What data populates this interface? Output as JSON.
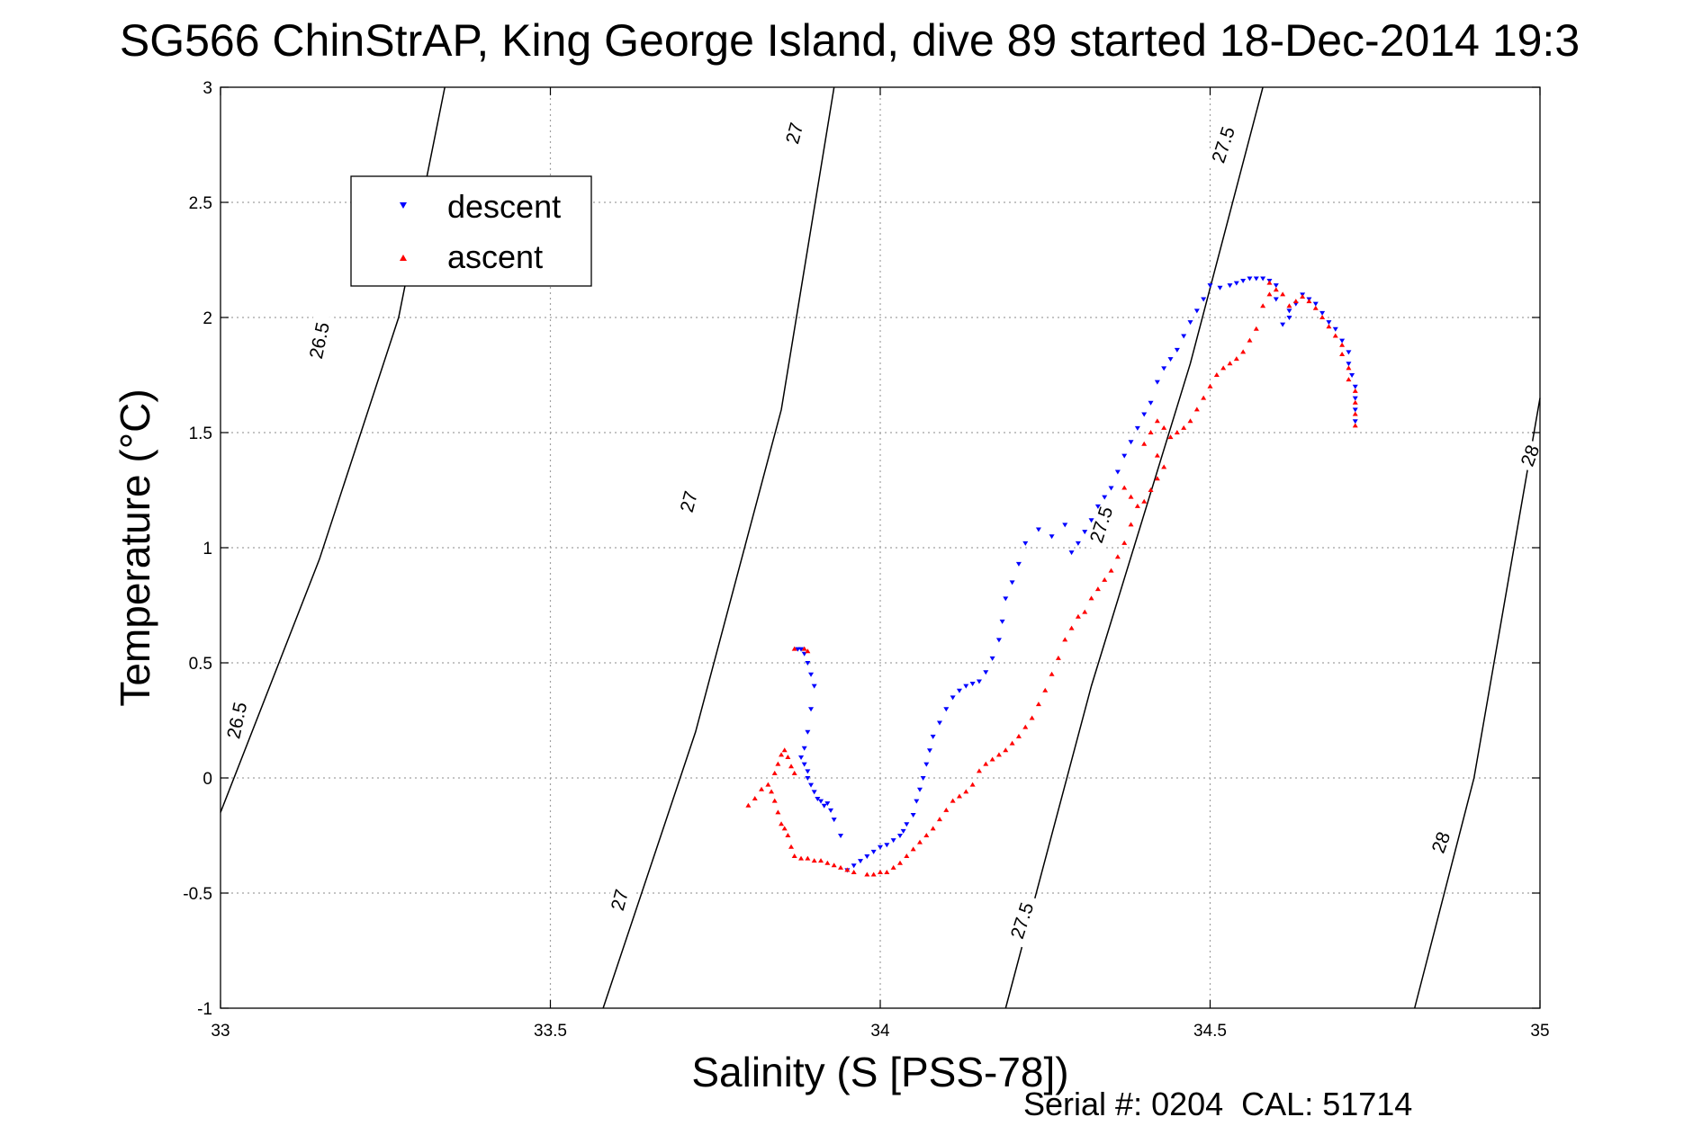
{
  "chart_data": {
    "type": "scatter",
    "title": "SG566 ChinStrAP, King George Island, dive 89 started 18-Dec-2014 19:3",
    "xlabel": "Salinity (S [PSS-78])",
    "ylabel": "Temperature (°C)",
    "xlim": [
      33,
      35
    ],
    "ylim": [
      -1,
      3
    ],
    "xticks": [
      "33",
      "33.5",
      "34",
      "34.5",
      "35"
    ],
    "yticks": [
      "-1",
      "-0.5",
      "0",
      "0.5",
      "1",
      "1.5",
      "2",
      "2.5",
      "3"
    ],
    "grid": true,
    "legend_position": "top-left",
    "footer": "Serial #: 0204  CAL: 51714",
    "series": [
      {
        "name": "descent",
        "color": "#0000ff",
        "marker": "triangle-down",
        "points": [
          [
            34.72,
            1.55
          ],
          [
            34.72,
            1.6
          ],
          [
            34.72,
            1.65
          ],
          [
            34.72,
            1.7
          ],
          [
            34.715,
            1.75
          ],
          [
            34.71,
            1.8
          ],
          [
            34.71,
            1.85
          ],
          [
            34.7,
            1.9
          ],
          [
            34.69,
            1.95
          ],
          [
            34.68,
            1.98
          ],
          [
            34.67,
            2.02
          ],
          [
            34.66,
            2.06
          ],
          [
            34.65,
            2.08
          ],
          [
            34.64,
            2.1
          ],
          [
            34.63,
            2.06
          ],
          [
            34.62,
            2.0
          ],
          [
            34.61,
            1.97
          ],
          [
            34.62,
            2.03
          ],
          [
            34.6,
            2.08
          ],
          [
            34.6,
            2.14
          ],
          [
            34.59,
            2.16
          ],
          [
            34.58,
            2.17
          ],
          [
            34.57,
            2.17
          ],
          [
            34.56,
            2.17
          ],
          [
            34.55,
            2.16
          ],
          [
            34.54,
            2.15
          ],
          [
            34.53,
            2.14
          ],
          [
            34.515,
            2.13
          ],
          [
            34.5,
            2.14
          ],
          [
            34.49,
            2.08
          ],
          [
            34.48,
            2.03
          ],
          [
            34.47,
            1.98
          ],
          [
            34.46,
            1.92
          ],
          [
            34.45,
            1.86
          ],
          [
            34.44,
            1.82
          ],
          [
            34.43,
            1.78
          ],
          [
            34.42,
            1.72
          ],
          [
            34.41,
            1.63
          ],
          [
            34.4,
            1.58
          ],
          [
            34.39,
            1.52
          ],
          [
            34.38,
            1.46
          ],
          [
            34.37,
            1.4
          ],
          [
            34.36,
            1.33
          ],
          [
            34.35,
            1.26
          ],
          [
            34.34,
            1.22
          ],
          [
            34.33,
            1.18
          ],
          [
            34.32,
            1.12
          ],
          [
            34.31,
            1.07
          ],
          [
            34.3,
            1.02
          ],
          [
            34.29,
            0.98
          ],
          [
            34.28,
            1.1
          ],
          [
            34.26,
            1.05
          ],
          [
            34.24,
            1.08
          ],
          [
            34.22,
            1.02
          ],
          [
            34.21,
            0.93
          ],
          [
            34.2,
            0.85
          ],
          [
            34.19,
            0.78
          ],
          [
            34.185,
            0.68
          ],
          [
            34.18,
            0.6
          ],
          [
            34.17,
            0.52
          ],
          [
            34.16,
            0.46
          ],
          [
            34.15,
            0.42
          ],
          [
            34.14,
            0.41
          ],
          [
            34.13,
            0.4
          ],
          [
            34.12,
            0.38
          ],
          [
            34.11,
            0.35
          ],
          [
            34.1,
            0.3
          ],
          [
            34.09,
            0.24
          ],
          [
            34.08,
            0.18
          ],
          [
            34.075,
            0.12
          ],
          [
            34.07,
            0.06
          ],
          [
            34.065,
            0.0
          ],
          [
            34.06,
            -0.05
          ],
          [
            34.055,
            -0.1
          ],
          [
            34.05,
            -0.16
          ],
          [
            34.04,
            -0.2
          ],
          [
            34.035,
            -0.23
          ],
          [
            34.03,
            -0.25
          ],
          [
            34.02,
            -0.27
          ],
          [
            34.01,
            -0.29
          ],
          [
            34.0,
            -0.3
          ],
          [
            33.99,
            -0.32
          ],
          [
            33.98,
            -0.34
          ],
          [
            33.97,
            -0.36
          ],
          [
            33.96,
            -0.38
          ],
          [
            33.95,
            -0.4
          ],
          [
            33.94,
            -0.25
          ],
          [
            33.93,
            -0.18
          ],
          [
            33.925,
            -0.14
          ],
          [
            33.92,
            -0.11
          ],
          [
            33.915,
            -0.12
          ],
          [
            33.91,
            -0.1
          ],
          [
            33.905,
            -0.09
          ],
          [
            33.9,
            -0.06
          ],
          [
            33.895,
            -0.03
          ],
          [
            33.89,
            0.0
          ],
          [
            33.89,
            0.03
          ],
          [
            33.885,
            0.06
          ],
          [
            33.88,
            0.09
          ],
          [
            33.885,
            0.13
          ],
          [
            33.89,
            0.2
          ],
          [
            33.895,
            0.3
          ],
          [
            33.9,
            0.4
          ],
          [
            33.895,
            0.45
          ],
          [
            33.89,
            0.5
          ],
          [
            33.885,
            0.54
          ],
          [
            33.88,
            0.56
          ],
          [
            33.875,
            0.56
          ]
        ]
      },
      {
        "name": "ascent",
        "color": "#ff0000",
        "marker": "triangle-up",
        "points": [
          [
            34.72,
            1.53
          ],
          [
            34.72,
            1.58
          ],
          [
            34.72,
            1.63
          ],
          [
            34.72,
            1.68
          ],
          [
            34.71,
            1.73
          ],
          [
            34.71,
            1.78
          ],
          [
            34.7,
            1.84
          ],
          [
            34.7,
            1.88
          ],
          [
            34.69,
            1.92
          ],
          [
            34.68,
            1.96
          ],
          [
            34.67,
            2.0
          ],
          [
            34.66,
            2.04
          ],
          [
            34.65,
            2.07
          ],
          [
            34.64,
            2.09
          ],
          [
            34.63,
            2.07
          ],
          [
            34.62,
            2.05
          ],
          [
            34.61,
            2.1
          ],
          [
            34.6,
            2.12
          ],
          [
            34.59,
            2.15
          ],
          [
            34.59,
            2.1
          ],
          [
            34.58,
            2.05
          ],
          [
            34.57,
            1.95
          ],
          [
            34.56,
            1.9
          ],
          [
            34.55,
            1.85
          ],
          [
            34.54,
            1.82
          ],
          [
            34.53,
            1.8
          ],
          [
            34.52,
            1.78
          ],
          [
            34.51,
            1.75
          ],
          [
            34.5,
            1.7
          ],
          [
            34.49,
            1.65
          ],
          [
            34.48,
            1.6
          ],
          [
            34.47,
            1.55
          ],
          [
            34.46,
            1.52
          ],
          [
            34.45,
            1.5
          ],
          [
            34.44,
            1.48
          ],
          [
            34.43,
            1.52
          ],
          [
            34.42,
            1.55
          ],
          [
            34.41,
            1.5
          ],
          [
            34.4,
            1.45
          ],
          [
            34.42,
            1.4
          ],
          [
            34.43,
            1.35
          ],
          [
            34.42,
            1.3
          ],
          [
            34.41,
            1.25
          ],
          [
            34.4,
            1.2
          ],
          [
            34.39,
            1.18
          ],
          [
            34.38,
            1.22
          ],
          [
            34.37,
            1.26
          ],
          [
            34.38,
            1.1
          ],
          [
            34.37,
            1.02
          ],
          [
            34.36,
            0.96
          ],
          [
            34.35,
            0.9
          ],
          [
            34.34,
            0.86
          ],
          [
            34.33,
            0.82
          ],
          [
            34.32,
            0.78
          ],
          [
            34.31,
            0.72
          ],
          [
            34.3,
            0.7
          ],
          [
            34.29,
            0.65
          ],
          [
            34.28,
            0.6
          ],
          [
            34.27,
            0.52
          ],
          [
            34.26,
            0.45
          ],
          [
            34.25,
            0.38
          ],
          [
            34.24,
            0.32
          ],
          [
            34.23,
            0.26
          ],
          [
            34.22,
            0.22
          ],
          [
            34.21,
            0.18
          ],
          [
            34.2,
            0.15
          ],
          [
            34.19,
            0.12
          ],
          [
            34.18,
            0.1
          ],
          [
            34.17,
            0.08
          ],
          [
            34.16,
            0.06
          ],
          [
            34.15,
            0.03
          ],
          [
            34.14,
            -0.03
          ],
          [
            34.13,
            -0.06
          ],
          [
            34.12,
            -0.08
          ],
          [
            34.11,
            -0.1
          ],
          [
            34.1,
            -0.14
          ],
          [
            34.09,
            -0.18
          ],
          [
            34.08,
            -0.22
          ],
          [
            34.07,
            -0.25
          ],
          [
            34.06,
            -0.28
          ],
          [
            34.05,
            -0.31
          ],
          [
            34.04,
            -0.34
          ],
          [
            34.03,
            -0.37
          ],
          [
            34.02,
            -0.39
          ],
          [
            34.01,
            -0.41
          ],
          [
            34.0,
            -0.41
          ],
          [
            33.99,
            -0.42
          ],
          [
            33.98,
            -0.42
          ],
          [
            33.96,
            -0.41
          ],
          [
            33.95,
            -0.4
          ],
          [
            33.94,
            -0.39
          ],
          [
            33.93,
            -0.38
          ],
          [
            33.92,
            -0.37
          ],
          [
            33.91,
            -0.36
          ],
          [
            33.9,
            -0.36
          ],
          [
            33.89,
            -0.35
          ],
          [
            33.88,
            -0.35
          ],
          [
            33.87,
            -0.34
          ],
          [
            33.865,
            -0.3
          ],
          [
            33.86,
            -0.25
          ],
          [
            33.855,
            -0.22
          ],
          [
            33.85,
            -0.2
          ],
          [
            33.845,
            -0.15
          ],
          [
            33.84,
            -0.1
          ],
          [
            33.835,
            -0.06
          ],
          [
            33.83,
            -0.03
          ],
          [
            33.84,
            0.02
          ],
          [
            33.845,
            0.06
          ],
          [
            33.85,
            0.1
          ],
          [
            33.855,
            0.12
          ],
          [
            33.86,
            0.09
          ],
          [
            33.865,
            0.05
          ],
          [
            33.87,
            0.02
          ],
          [
            33.82,
            -0.05
          ],
          [
            33.81,
            -0.09
          ],
          [
            33.8,
            -0.12
          ],
          [
            33.885,
            0.56
          ],
          [
            33.89,
            0.55
          ],
          [
            33.87,
            0.56
          ]
        ]
      }
    ],
    "contours": [
      {
        "label": "26.5",
        "points": [
          [
            33.0,
            -0.15
          ],
          [
            33.15,
            0.95
          ],
          [
            33.27,
            2.0
          ],
          [
            33.34,
            3.0
          ]
        ]
      },
      {
        "label": "27",
        "points": [
          [
            33.58,
            -1.0
          ],
          [
            33.72,
            0.2
          ],
          [
            33.85,
            1.6
          ],
          [
            33.93,
            3.0
          ]
        ]
      },
      {
        "label": "27.5",
        "points": [
          [
            34.19,
            -1.0
          ],
          [
            34.32,
            0.4
          ],
          [
            34.47,
            1.8
          ],
          [
            34.58,
            3.0
          ]
        ]
      },
      {
        "label": "28",
        "points": [
          [
            34.81,
            -1.0
          ],
          [
            34.9,
            0.0
          ],
          [
            35.0,
            1.65
          ]
        ]
      }
    ],
    "contour_labels": [
      {
        "text": "26.5",
        "x": 33.15,
        "y": 1.9,
        "angle": -78
      },
      {
        "text": "26.5",
        "x": 33.025,
        "y": 0.25,
        "angle": -78
      },
      {
        "text": "27",
        "x": 33.87,
        "y": 2.8,
        "angle": -75
      },
      {
        "text": "27",
        "x": 33.71,
        "y": 1.2,
        "angle": -75
      },
      {
        "text": "27",
        "x": 33.605,
        "y": -0.53,
        "angle": -75
      },
      {
        "text": "27.5",
        "x": 34.52,
        "y": 2.75,
        "angle": -72
      },
      {
        "text": "27.5",
        "x": 34.335,
        "y": 1.1,
        "angle": -72
      },
      {
        "text": "27.5",
        "x": 34.215,
        "y": -0.62,
        "angle": -72
      },
      {
        "text": "28",
        "x": 34.985,
        "y": 1.4,
        "angle": -70
      },
      {
        "text": "28",
        "x": 34.85,
        "y": -0.28,
        "angle": -70
      }
    ]
  }
}
